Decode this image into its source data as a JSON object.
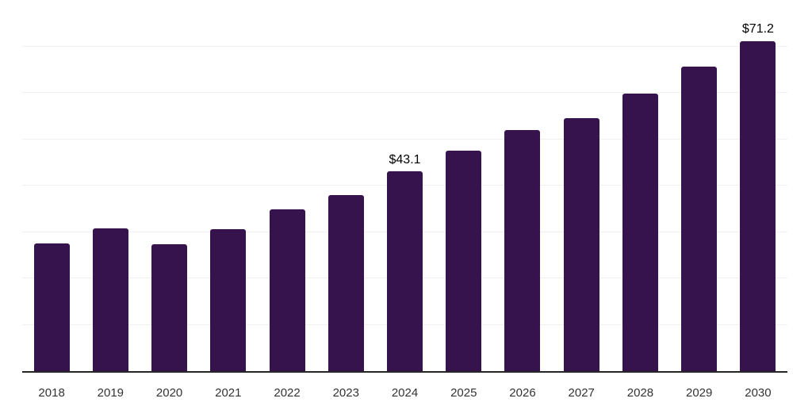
{
  "chart_data": {
    "type": "bar",
    "title": "",
    "xlabel": "",
    "ylabel": "",
    "categories": [
      "2018",
      "2019",
      "2020",
      "2021",
      "2022",
      "2023",
      "2024",
      "2025",
      "2026",
      "2027",
      "2028",
      "2029",
      "2030"
    ],
    "values": [
      27.6,
      30.7,
      27.3,
      30.6,
      34.8,
      38.0,
      43.1,
      47.5,
      51.9,
      54.6,
      59.8,
      65.7,
      71.2
    ],
    "labeled_points": [
      {
        "category": "2024",
        "label": "$43.1"
      },
      {
        "category": "2030",
        "label": "$71.2"
      }
    ],
    "ylim": [
      0,
      80
    ],
    "gridline_step": 10,
    "grid": true,
    "y_axis_tick_labels_visible": false,
    "legend_position": "none",
    "colors": {
      "bar": "#36134D",
      "gridline": "#F0F0F0",
      "axis_line": "#262626",
      "tick_label": "#333333",
      "data_label": "#000000",
      "background": "#FFFFFF"
    }
  }
}
